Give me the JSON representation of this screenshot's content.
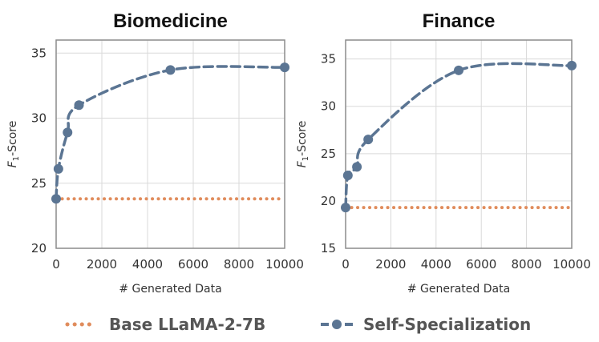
{
  "colors": {
    "self_specialization": "#5b7593",
    "base": "#e08c5c",
    "grid": "#d9d9d9",
    "frame": "#8c8c8c"
  },
  "legend": [
    {
      "label": "Base LLaMA-2-7B",
      "style": "dotted"
    },
    {
      "label": "Self-Specialization",
      "style": "dashed-with-markers"
    }
  ],
  "chart_data": [
    {
      "type": "line",
      "title": "Biomedicine",
      "xlabel": "# Generated Data",
      "ylabel": {
        "prefix": "F",
        "subscript": "1",
        "suffix": "-Score"
      },
      "xlim": [
        0,
        10000
      ],
      "ylim": [
        20,
        36
      ],
      "xticks": [
        0,
        2000,
        4000,
        6000,
        8000,
        10000
      ],
      "yticks": [
        20,
        25,
        30,
        35
      ],
      "grid": true,
      "series": [
        {
          "name": "Base LLaMA-2-7B",
          "style": "dotted",
          "x": [
            0,
            10000
          ],
          "y": [
            23.8,
            23.8
          ]
        },
        {
          "name": "Self-Specialization",
          "style": "dashed-with-markers",
          "x": [
            0,
            100,
            500,
            1000,
            5000,
            10000
          ],
          "y": [
            23.8,
            26.1,
            28.9,
            31.0,
            33.7,
            33.9
          ]
        }
      ]
    },
    {
      "type": "line",
      "title": "Finance",
      "xlabel": "# Generated Data",
      "ylabel": {
        "prefix": "F",
        "subscript": "1",
        "suffix": "-Score"
      },
      "xlim": [
        0,
        10000
      ],
      "ylim": [
        15,
        37
      ],
      "xticks": [
        0,
        2000,
        4000,
        6000,
        8000,
        10000
      ],
      "yticks": [
        15,
        20,
        25,
        30,
        35
      ],
      "grid": true,
      "series": [
        {
          "name": "Base LLaMA-2-7B",
          "style": "dotted",
          "x": [
            0,
            10000
          ],
          "y": [
            19.3,
            19.3
          ]
        },
        {
          "name": "Self-Specialization",
          "style": "dashed-with-markers",
          "x": [
            0,
            100,
            500,
            1000,
            5000,
            10000
          ],
          "y": [
            19.3,
            22.7,
            23.6,
            26.5,
            33.8,
            34.3
          ]
        }
      ]
    }
  ]
}
